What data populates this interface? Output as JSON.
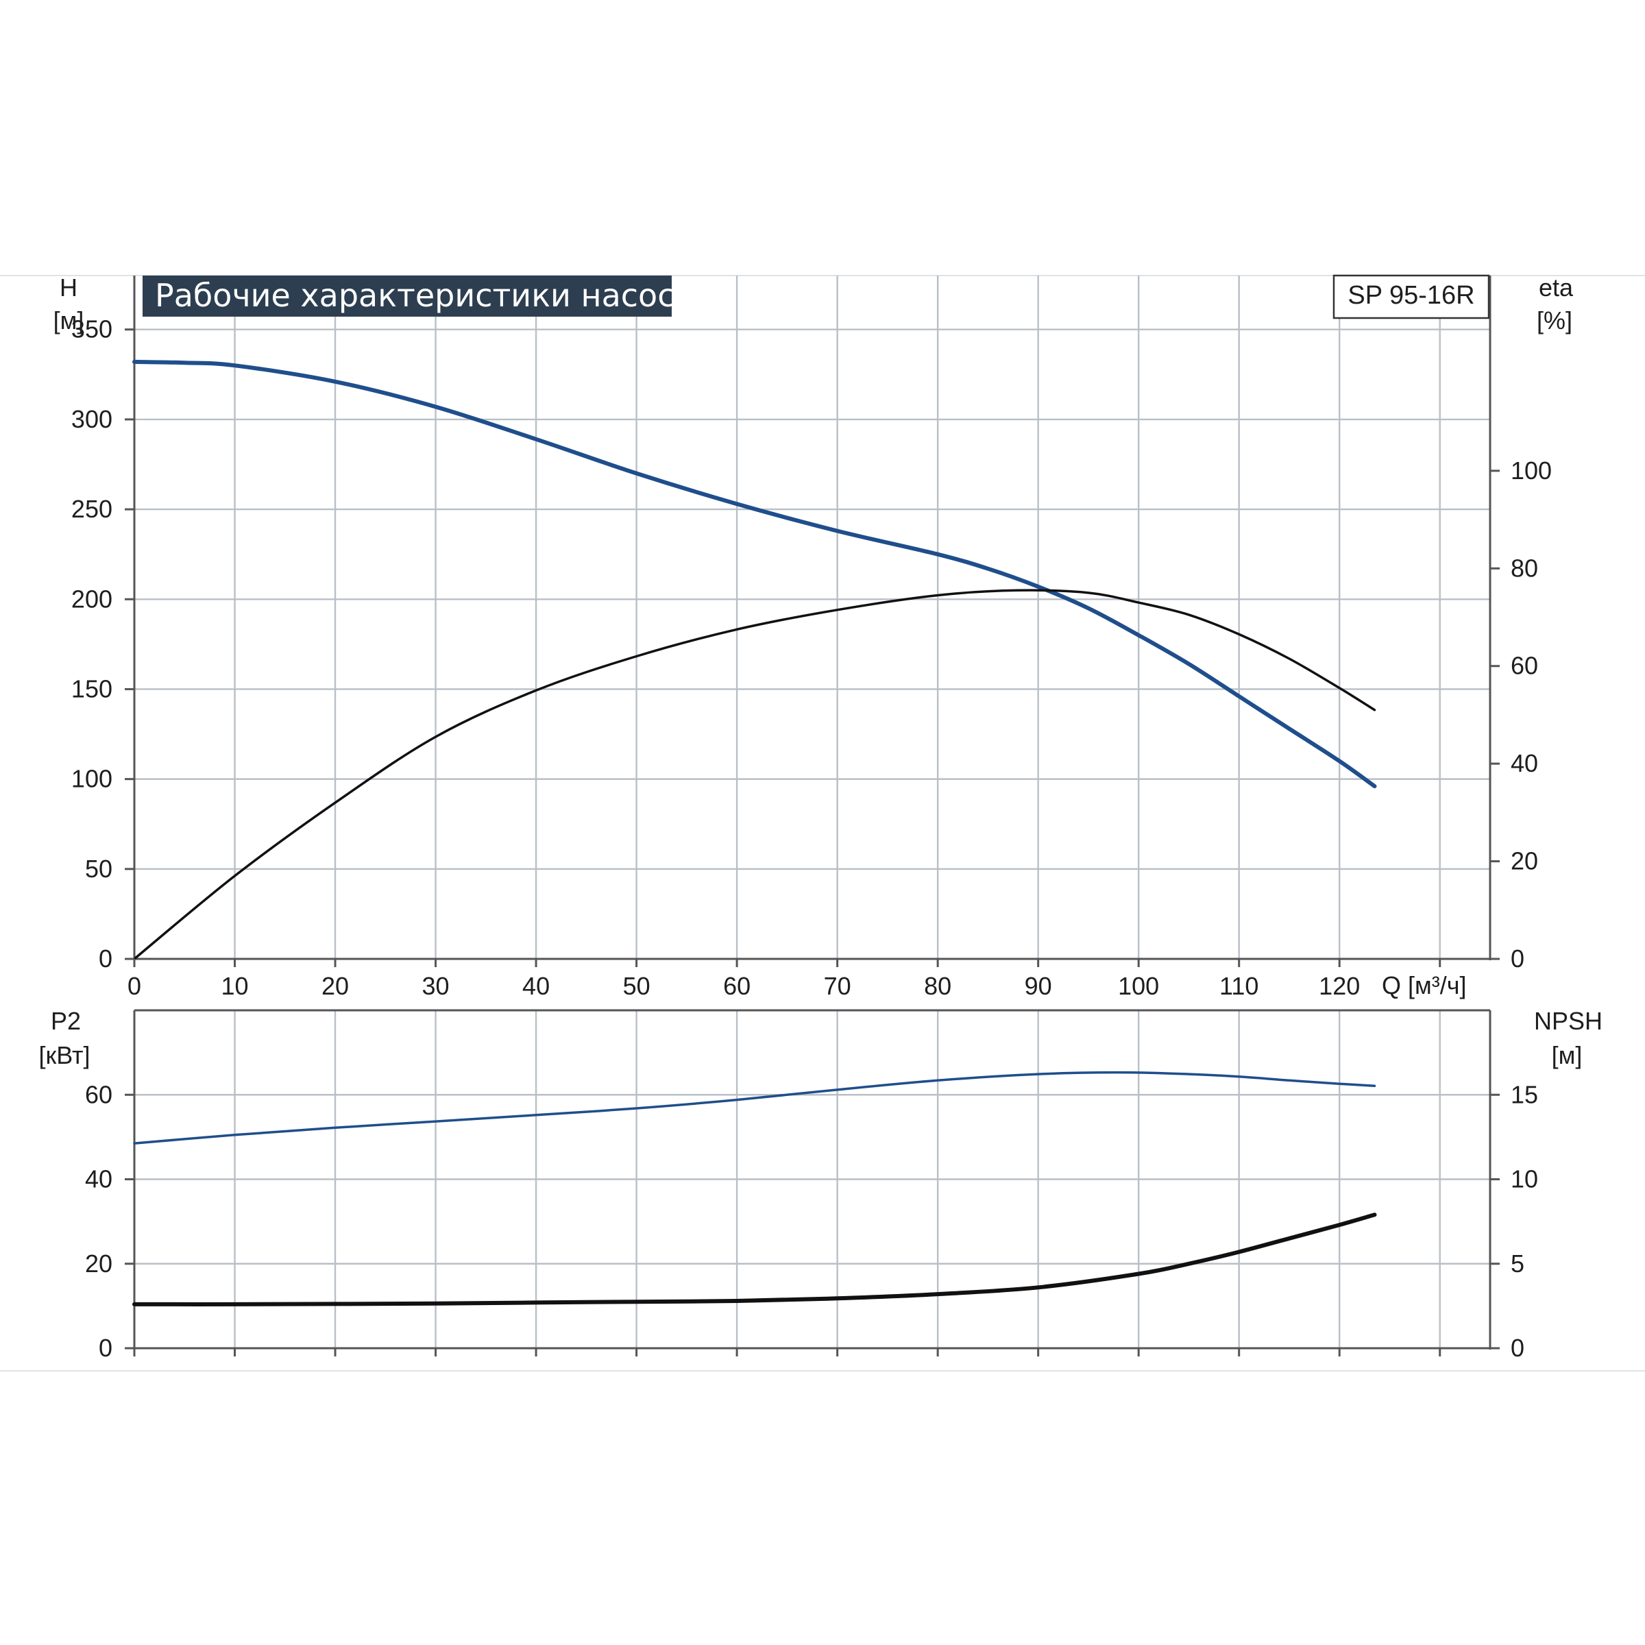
{
  "title": "Рабочие характеристики насоса",
  "model": "SP 95-16R",
  "colors": {
    "blue": "#1f4e8c",
    "black": "#111111",
    "grid": "#b9bfc6",
    "title_bg": "#2d3e50"
  },
  "chart_data": [
    {
      "type": "line",
      "id": "top",
      "xlabel": "Q [м³/ч]",
      "xlim": [
        0,
        135
      ],
      "x_ticks": [
        "0",
        "10",
        "20",
        "30",
        "40",
        "50",
        "60",
        "70",
        "80",
        "90",
        "100",
        "110",
        "120"
      ],
      "grid": true,
      "left_axis": {
        "label": "H",
        "unit": "[м]",
        "ylim": [
          0,
          380
        ],
        "ticks": [
          "0",
          "50",
          "100",
          "150",
          "200",
          "250",
          "300",
          "350"
        ]
      },
      "right_axis": {
        "label": "eta",
        "unit": "[%]",
        "ylim": [
          0,
          140
        ],
        "ticks": [
          "0",
          "20",
          "40",
          "60",
          "80",
          "100"
        ]
      },
      "series": [
        {
          "axis": "left",
          "color": "#1f4e8c",
          "x": [
            0,
            5,
            10,
            20,
            30,
            40,
            50,
            60,
            70,
            80,
            85,
            90,
            95,
            100,
            105,
            110,
            115,
            120,
            123.5
          ],
          "y": [
            332,
            331.5,
            330,
            321,
            307,
            289,
            270,
            253,
            238,
            225,
            217,
            207,
            195,
            180,
            164,
            146,
            128,
            110,
            96
          ]
        },
        {
          "axis": "right",
          "color": "#111111",
          "x": [
            0,
            10,
            20,
            30,
            40,
            50,
            60,
            70,
            80,
            88,
            95,
            100,
            105,
            110,
            115,
            120,
            123.5
          ],
          "y": [
            0,
            17,
            32,
            45.5,
            55,
            62,
            67.5,
            71.5,
            74.5,
            75.5,
            75,
            73,
            70.5,
            66.5,
            61.5,
            55.5,
            51
          ]
        }
      ]
    },
    {
      "type": "line",
      "id": "bottom",
      "xlim": [
        0,
        135
      ],
      "grid": true,
      "left_axis": {
        "label": "P2",
        "unit": "[кВт]",
        "ylim": [
          0,
          80
        ],
        "ticks": [
          "0",
          "20",
          "40",
          "60"
        ]
      },
      "right_axis": {
        "label": "NPSH",
        "unit": "[м]",
        "ylim": [
          0,
          20
        ],
        "ticks": [
          "0",
          "5",
          "10",
          "15"
        ]
      },
      "series": [
        {
          "axis": "left",
          "color": "#1f4e8c",
          "x": [
            0,
            10,
            20,
            30,
            40,
            50,
            60,
            70,
            80,
            90,
            98,
            105,
            110,
            115,
            120,
            123.5
          ],
          "y": [
            48.5,
            50.5,
            52.2,
            53.7,
            55.2,
            56.8,
            58.8,
            61.2,
            63.4,
            64.9,
            65.3,
            64.9,
            64.3,
            63.4,
            62.6,
            62.1
          ]
        },
        {
          "axis": "right",
          "color": "#111111",
          "x": [
            0,
            10,
            20,
            30,
            40,
            50,
            60,
            70,
            80,
            90,
            100,
            105,
            110,
            115,
            120,
            123.5
          ],
          "y": [
            2.6,
            2.6,
            2.62,
            2.65,
            2.7,
            2.75,
            2.8,
            2.95,
            3.2,
            3.6,
            4.4,
            5.0,
            5.7,
            6.5,
            7.3,
            7.9
          ]
        }
      ]
    }
  ]
}
